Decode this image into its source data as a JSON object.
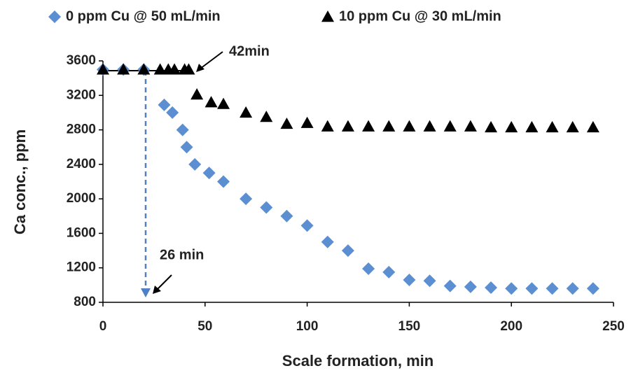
{
  "chart_data": {
    "type": "scatter",
    "x_label": "Scale formation, min",
    "y_label": "Ca conc., ppm",
    "xlim": [
      0,
      250
    ],
    "xticks": [
      0,
      50,
      100,
      150,
      200,
      250
    ],
    "ylim": [
      800,
      3600
    ],
    "yticks": [
      800,
      1200,
      1600,
      2000,
      2400,
      2800,
      3200,
      3600
    ],
    "legend": "top",
    "series": [
      {
        "name": "0 ppm Cu @ 50 mL/min",
        "color": "#5b8fd1",
        "marker": "diamond",
        "x": [
          0,
          10,
          20,
          30,
          34,
          39,
          41,
          45,
          52,
          59,
          70,
          80,
          90,
          100,
          110,
          120,
          130,
          140,
          150,
          160,
          170,
          180,
          190,
          200,
          210,
          220,
          230,
          240
        ],
        "values": [
          3500,
          3500,
          3500,
          3090,
          3000,
          2800,
          2600,
          2400,
          2300,
          2200,
          2000,
          1900,
          1800,
          1690,
          1500,
          1400,
          1190,
          1150,
          1060,
          1050,
          990,
          980,
          970,
          960,
          960,
          960,
          960,
          960
        ]
      },
      {
        "name": "10 ppm Cu @ 30 mL/min",
        "color": "#000000",
        "marker": "triangle",
        "x": [
          0,
          10,
          20,
          28,
          32,
          35,
          40,
          42,
          46,
          53,
          59,
          70,
          80,
          90,
          100,
          110,
          120,
          130,
          140,
          150,
          160,
          170,
          180,
          190,
          200,
          210,
          220,
          230,
          240
        ],
        "values": [
          3500,
          3500,
          3500,
          3500,
          3500,
          3500,
          3500,
          3500,
          3210,
          3120,
          3100,
          3000,
          2950,
          2870,
          2880,
          2840,
          2840,
          2840,
          2840,
          2840,
          2840,
          2840,
          2840,
          2830,
          2830,
          2830,
          2830,
          2830,
          2830
        ]
      }
    ],
    "annotations": [
      "42min",
      "26 min"
    ]
  }
}
